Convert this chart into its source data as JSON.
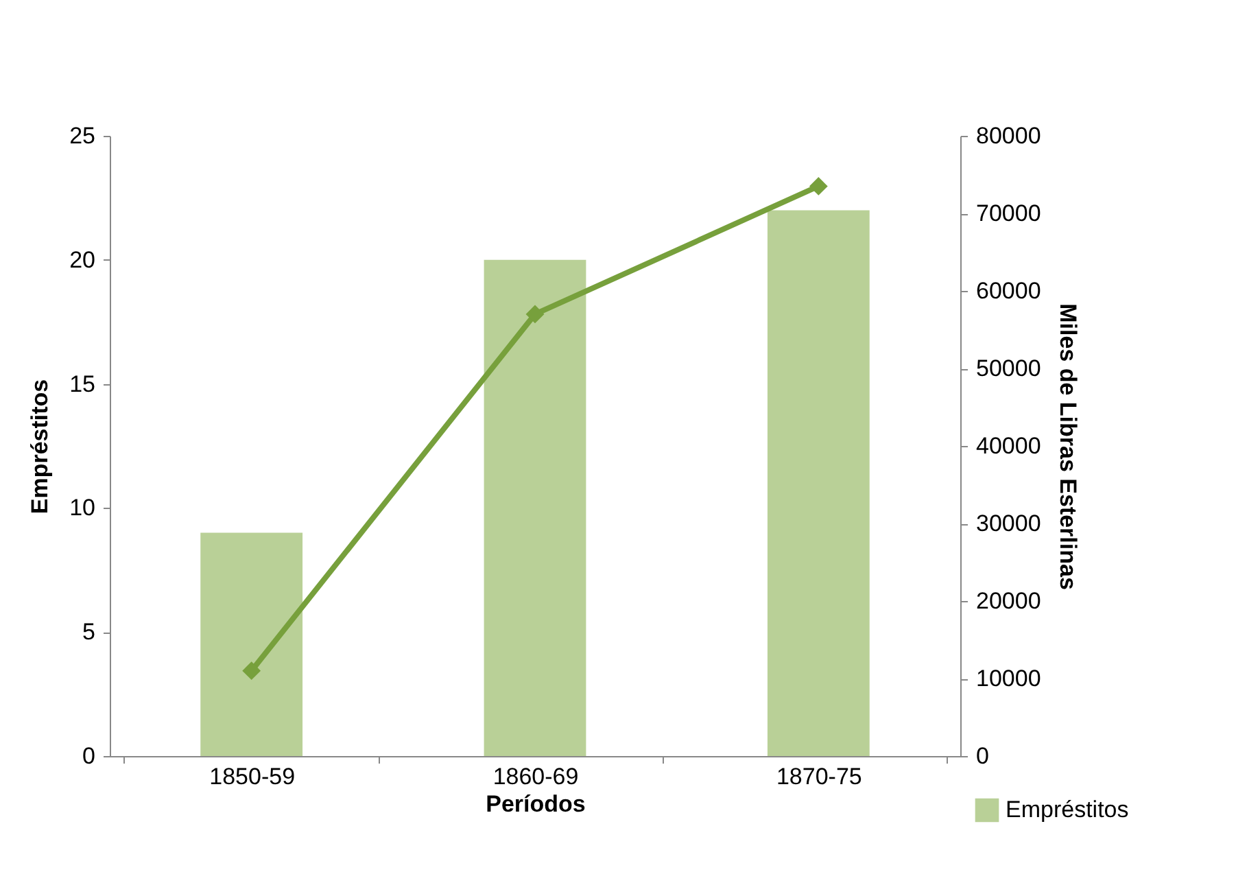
{
  "chart_data": {
    "type": "bar",
    "xlabel": "Períodos",
    "ylabel": "Empréstitos",
    "y2label": "Miles de Libras Esterlinas",
    "categories": [
      "1850-59",
      "1860-69",
      "1870-75"
    ],
    "series": [
      {
        "name": "Empréstitos",
        "color": "#b9d097",
        "values": [
          9,
          20,
          22
        ]
      },
      {
        "type": "line",
        "axis": "y2",
        "color": "#77a03c",
        "marker": "diamond",
        "values": [
          11000,
          57000,
          73500
        ]
      }
    ],
    "ylim": [
      0,
      25
    ],
    "yticks": [
      0,
      5,
      10,
      15,
      20,
      25
    ],
    "y2lim": [
      0,
      80000
    ],
    "y2ticks": [
      0,
      10000,
      20000,
      30000,
      40000,
      50000,
      60000,
      70000,
      80000
    ],
    "grid": false,
    "legend": "bottom right"
  }
}
